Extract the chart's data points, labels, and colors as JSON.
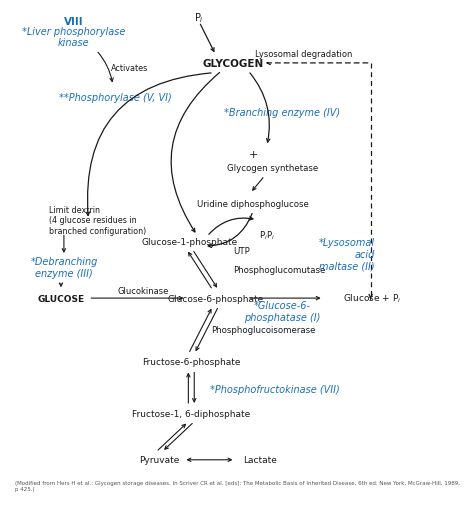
{
  "bg_color": "#ffffff",
  "blue_color": "#1a6fba",
  "black_color": "#1a1a1a",
  "gray_color": "#555555",
  "citation": "(Modified from Hers H et al.: Glycogen storage diseases. In Scriver CR et al. [eds]: The Metabolic Basis of Inherited Disease, 6th ed. New York, McGraw-Hill, 1989, p 425.)"
}
